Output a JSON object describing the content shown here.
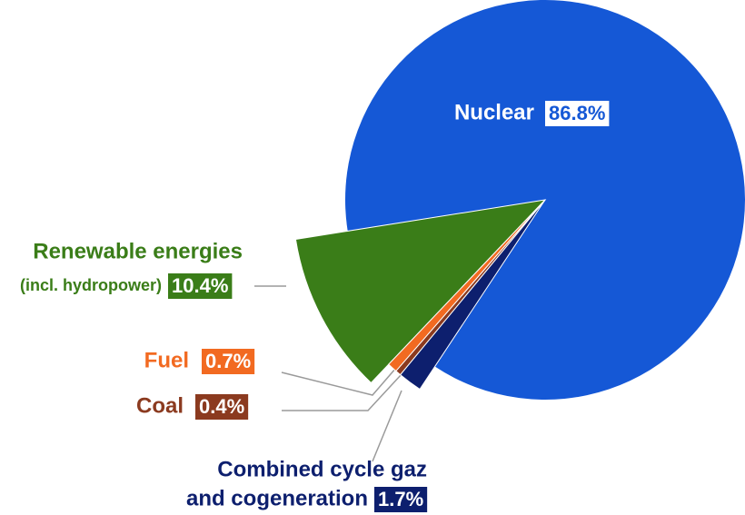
{
  "chart_data": {
    "type": "pie",
    "categories": [
      [
        "Nuclear"
      ],
      [
        "Renewable energies",
        "(incl. hydropower)"
      ],
      [
        "Fuel"
      ],
      [
        "Coal"
      ],
      [
        "Combined cycle gaz",
        "and cogeneration"
      ]
    ],
    "values": [
      86.8,
      10.4,
      0.7,
      0.4,
      1.7
    ],
    "value_labels": [
      "86.8%",
      "10.4%",
      "0.7%",
      "0.4%",
      "1.7%"
    ],
    "colors": [
      "#1558d6",
      "#3a7d18",
      "#f26a21",
      "#8b3a1f",
      "#0d1f6e"
    ]
  }
}
